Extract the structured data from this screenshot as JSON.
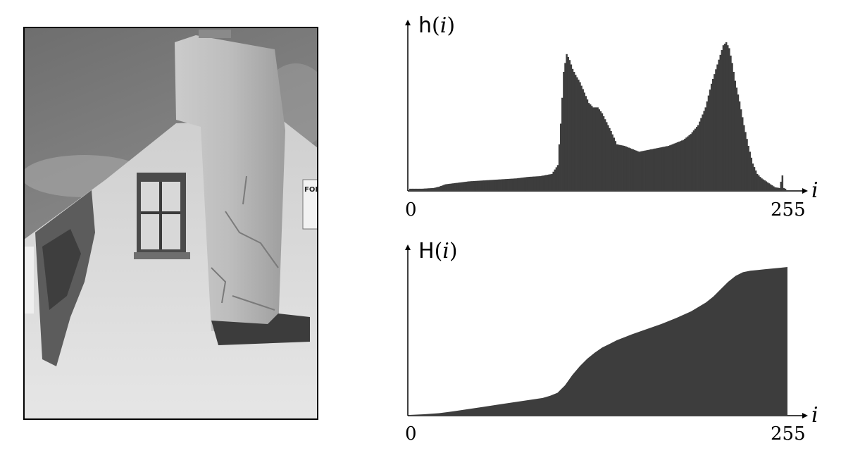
{
  "photo": {
    "description_icon": "building-gable-photo-icon",
    "sign_text": "FOR"
  },
  "colors": {
    "bar_fill": "#3d3d3d",
    "axis": "#000000"
  },
  "chart_data": [
    {
      "type": "bar",
      "title_func": "h",
      "title_var": "i",
      "xlabel": "i",
      "ylabel": "",
      "xlim": [
        0,
        255
      ],
      "ylim": [
        0,
        1
      ],
      "tick_labels": [
        "0",
        "255"
      ],
      "grid": false,
      "x": [
        0,
        8,
        16,
        20,
        24,
        32,
        40,
        48,
        56,
        64,
        72,
        80,
        88,
        96,
        100,
        102,
        104,
        106,
        108,
        110,
        112,
        115,
        118,
        121,
        124,
        127,
        130,
        133,
        136,
        140,
        145,
        150,
        155,
        160,
        165,
        170,
        175,
        180,
        185,
        190,
        195,
        200,
        204,
        208,
        212,
        214,
        216,
        218,
        220,
        223,
        226,
        229,
        232,
        235,
        238,
        241,
        244,
        247,
        250,
        252,
        253,
        254,
        255
      ],
      "values": [
        0.01,
        0.01,
        0.015,
        0.025,
        0.04,
        0.05,
        0.06,
        0.065,
        0.07,
        0.075,
        0.08,
        0.09,
        0.095,
        0.11,
        0.17,
        0.45,
        0.8,
        0.92,
        0.88,
        0.82,
        0.78,
        0.73,
        0.66,
        0.59,
        0.56,
        0.56,
        0.52,
        0.46,
        0.4,
        0.31,
        0.3,
        0.28,
        0.26,
        0.27,
        0.28,
        0.29,
        0.3,
        0.32,
        0.34,
        0.38,
        0.44,
        0.56,
        0.72,
        0.85,
        0.98,
        1.0,
        0.96,
        0.86,
        0.74,
        0.6,
        0.44,
        0.3,
        0.18,
        0.11,
        0.08,
        0.06,
        0.04,
        0.02,
        0.015,
        0.1,
        0.015,
        0.01,
        0.0
      ]
    },
    {
      "type": "area",
      "title_func": "H",
      "title_var": "i",
      "xlabel": "i",
      "ylabel": "",
      "xlim": [
        0,
        255
      ],
      "ylim": [
        0,
        1
      ],
      "tick_labels": [
        "0",
        "255"
      ],
      "grid": false,
      "x": [
        0,
        10,
        20,
        30,
        40,
        50,
        60,
        70,
        80,
        90,
        95,
        100,
        102,
        105,
        110,
        115,
        120,
        125,
        130,
        135,
        140,
        150,
        160,
        170,
        180,
        190,
        200,
        205,
        210,
        215,
        220,
        225,
        230,
        235,
        240,
        245,
        250,
        255
      ],
      "values": [
        0.0,
        0.005,
        0.012,
        0.025,
        0.04,
        0.055,
        0.07,
        0.085,
        0.1,
        0.115,
        0.13,
        0.15,
        0.17,
        0.2,
        0.27,
        0.33,
        0.38,
        0.42,
        0.455,
        0.48,
        0.505,
        0.545,
        0.58,
        0.615,
        0.655,
        0.7,
        0.76,
        0.8,
        0.85,
        0.9,
        0.94,
        0.965,
        0.975,
        0.98,
        0.985,
        0.99,
        0.995,
        1.0
      ]
    }
  ]
}
